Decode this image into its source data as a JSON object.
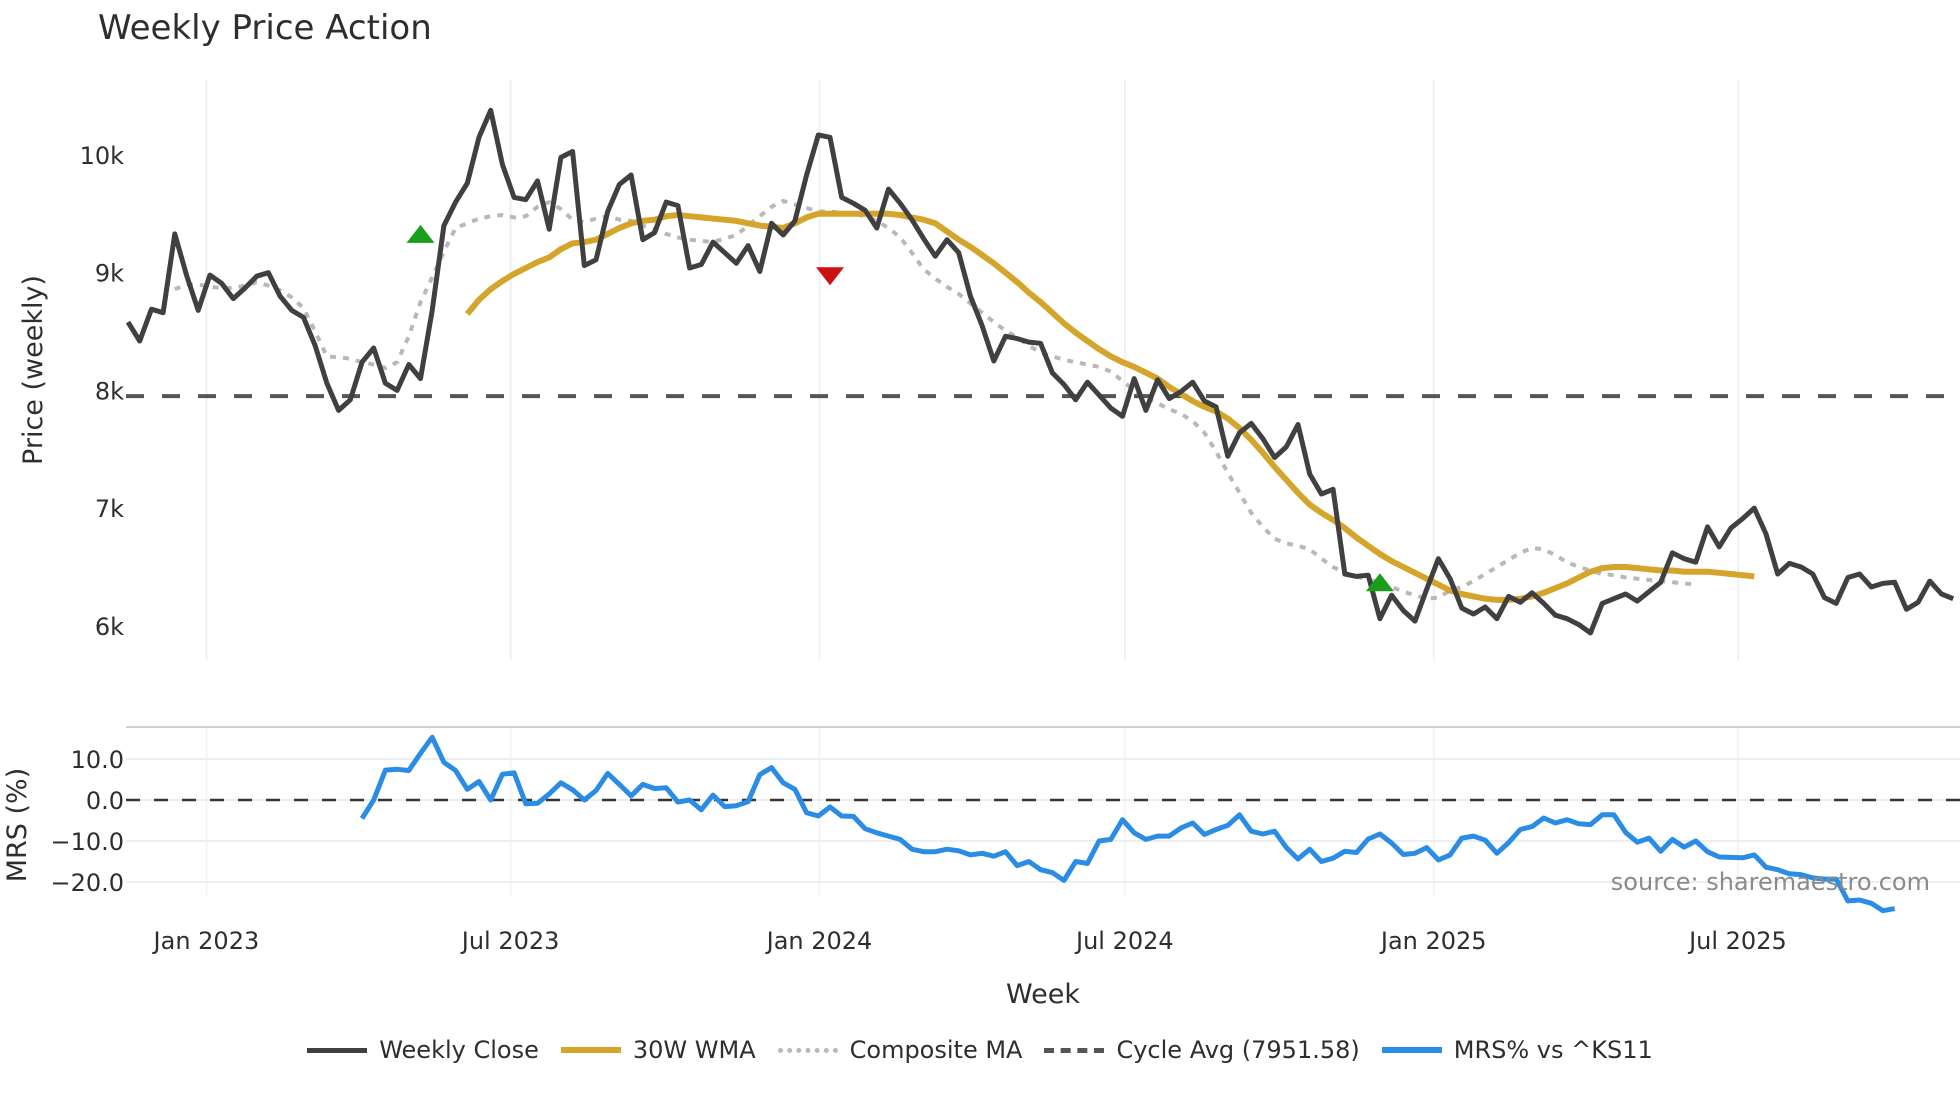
{
  "title": "Weekly Price Action",
  "source_label": "source: sharemaestro.com",
  "axes": {
    "price_ylabel": "Price (weekly)",
    "mrs_ylabel": "MRS (%)",
    "xlabel": "Week",
    "price_ticks": [
      {
        "label": "10k",
        "value": 10000
      },
      {
        "label": "9k",
        "value": 9000
      },
      {
        "label": "8k",
        "value": 8000
      },
      {
        "label": "7k",
        "value": 7000
      },
      {
        "label": "6k",
        "value": 6000
      }
    ],
    "mrs_ticks": [
      {
        "label": "10.0",
        "value": 10
      },
      {
        "label": "0.0",
        "value": 0
      },
      {
        "label": "−10.0",
        "value": -10
      },
      {
        "label": "−20.0",
        "value": -20
      }
    ],
    "x_ticks": [
      {
        "label": "Jan 2023",
        "week": 6.7
      },
      {
        "label": "Jul 2023",
        "week": 32.7
      },
      {
        "label": "Jan 2024",
        "week": 59.1
      },
      {
        "label": "Jul 2024",
        "week": 85.2
      },
      {
        "label": "Jan 2025",
        "week": 111.6
      },
      {
        "label": "Jul 2025",
        "week": 137.6
      }
    ]
  },
  "legend": [
    {
      "label": "Weekly Close",
      "color": "#404040",
      "style": "solid"
    },
    {
      "label": "30W WMA",
      "color": "#d4a52a",
      "style": "solid"
    },
    {
      "label": "Composite MA",
      "color": "#b8b8b8",
      "style": "dotted"
    },
    {
      "label": "Cycle Avg (7951.58)",
      "color": "#555555",
      "style": "dashed"
    },
    {
      "label": "MRS% vs ^KS11",
      "color": "#2b8ce6",
      "style": "solid"
    }
  ],
  "chart_data": [
    {
      "type": "line",
      "title": "Weekly Price Action",
      "xlabel": "Week",
      "ylabel": "Price (weekly)",
      "ylim": [
        5700,
        10600
      ],
      "x_range": [
        "Nov 2022",
        "Oct 2025"
      ],
      "grid": true,
      "reference_line": {
        "name": "Cycle Avg",
        "value": 7951.58
      },
      "series": [
        {
          "name": "Weekly Close",
          "start_week": 0,
          "values": [
            8580,
            8420,
            8690,
            8660,
            9330,
            8980,
            8680,
            8980,
            8910,
            8780,
            8870,
            8970,
            9000,
            8800,
            8680,
            8620,
            8380,
            8060,
            7830,
            7920,
            8240,
            8360,
            8060,
            8000,
            8220,
            8100,
            8680,
            9400,
            9600,
            9760,
            10150,
            10380,
            9920,
            9640,
            9620,
            9780,
            9370,
            9980,
            10030,
            9060,
            9110,
            9520,
            9750,
            9830,
            9280,
            9340,
            9600,
            9570,
            9040,
            9070,
            9260,
            9170,
            9080,
            9230,
            9010,
            9420,
            9320,
            9440,
            9830,
            10170,
            10150,
            9640,
            9590,
            9530,
            9380,
            9710,
            9590,
            9450,
            9290,
            9140,
            9280,
            9170,
            8800,
            8550,
            8250,
            8460,
            8440,
            8410,
            8400,
            8150,
            8050,
            7920,
            8070,
            7960,
            7850,
            7780,
            8100,
            7830,
            8090,
            7930,
            7990,
            8070,
            7910,
            7860,
            7440,
            7640,
            7720,
            7590,
            7430,
            7520,
            7710,
            7290,
            7120,
            7160,
            6440,
            6420,
            6430,
            6060,
            6260,
            6130,
            6040,
            6310,
            6570,
            6400,
            6150,
            6100,
            6160,
            6060,
            6250,
            6200,
            6280,
            6190,
            6090,
            6060,
            6010,
            5940,
            6190,
            6230,
            6270,
            6210,
            6290,
            6370,
            6620,
            6570,
            6540,
            6840,
            6670,
            6830,
            6910,
            7000,
            6780,
            6440,
            6530,
            6500,
            6440,
            6240,
            6190,
            6410,
            6440,
            6330,
            6360,
            6370,
            6140,
            6200,
            6380,
            6270,
            6230
          ]
        },
        {
          "name": "30W WMA",
          "start_week": 29,
          "values": [
            8650,
            8770,
            8860,
            8930,
            8990,
            9040,
            9090,
            9130,
            9200,
            9250,
            9260,
            9280,
            9330,
            9380,
            9420,
            9440,
            9450,
            9480,
            9490,
            9480,
            9470,
            9460,
            9450,
            9440,
            9420,
            9400,
            9390,
            9380,
            9420,
            9470,
            9500,
            9500,
            9500,
            9500,
            9500,
            9500,
            9500,
            9490,
            9470,
            9450,
            9420,
            9350,
            9280,
            9220,
            9150,
            9080,
            9000,
            8920,
            8830,
            8750,
            8660,
            8570,
            8490,
            8420,
            8350,
            8290,
            8240,
            8200,
            8150,
            8100,
            8030,
            7970,
            7910,
            7860,
            7820,
            7760,
            7680,
            7580,
            7470,
            7350,
            7240,
            7130,
            7030,
            6960,
            6900,
            6830,
            6750,
            6680,
            6610,
            6550,
            6500,
            6450,
            6400,
            6350,
            6300,
            6270,
            6250,
            6230,
            6220,
            6220,
            6230,
            6250,
            6280,
            6320,
            6360,
            6410,
            6460,
            6490,
            6500,
            6500,
            6490,
            6480,
            6470,
            6470,
            6460,
            6460,
            6460,
            6450,
            6440,
            6430,
            6420
          ]
        },
        {
          "name": "Composite MA",
          "start_week": 4,
          "values": [
            8860,
            8900,
            8900,
            8880,
            8870,
            8870,
            8890,
            8920,
            8890,
            8850,
            8790,
            8700,
            8500,
            8290,
            8280,
            8270,
            8240,
            8220,
            8190,
            8240,
            8460,
            8750,
            8960,
            9180,
            9380,
            9420,
            9460,
            9480,
            9490,
            9470,
            9480,
            9560,
            9600,
            9540,
            9450,
            9430,
            9460,
            9480,
            9450,
            9440,
            9400,
            9370,
            9330,
            9300,
            9280,
            9270,
            9260,
            9290,
            9320,
            9400,
            9480,
            9560,
            9610,
            9580,
            9550,
            9520,
            9520,
            9510,
            9500,
            9480,
            9440,
            9380,
            9300,
            9170,
            9030,
            8950,
            8880,
            8820,
            8740,
            8660,
            8580,
            8510,
            8450,
            8380,
            8320,
            8290,
            8260,
            8240,
            8220,
            8200,
            8160,
            8080,
            8000,
            7940,
            7890,
            7840,
            7800,
            7740,
            7640,
            7480,
            7300,
            7130,
            6960,
            6840,
            6740,
            6700,
            6680,
            6650,
            6570,
            6500,
            6450,
            6420,
            6390,
            6370,
            6330,
            6290,
            6260,
            6230,
            6240,
            6300,
            6330,
            6380,
            6440,
            6500,
            6560,
            6620,
            6660,
            6650,
            6600,
            6540,
            6500,
            6470,
            6440,
            6430,
            6410,
            6400,
            6390,
            6380,
            6370,
            6360,
            6350
          ]
        },
        {
          "name": "Buy signal",
          "type": "marker",
          "color": "#1a9e1a",
          "points": [
            {
              "week": 25,
              "value": 9330
            },
            {
              "week": 107,
              "value": 6370
            }
          ]
        },
        {
          "name": "Sell signal",
          "type": "marker",
          "color": "#cc1111",
          "points": [
            {
              "week": 60,
              "value": 8970
            }
          ]
        }
      ]
    },
    {
      "type": "line",
      "title": "MRS% vs ^KS11",
      "xlabel": "Week",
      "ylabel": "MRS (%)",
      "ylim": [
        -27,
        18
      ],
      "grid": true,
      "reference_line": {
        "name": "zero",
        "value": 0
      },
      "series": [
        {
          "name": "MRS% vs ^KS11",
          "start_week": 20,
          "values": [
            -4.5,
            0,
            7.3,
            7.5,
            7.2,
            11.4,
            15.3,
            9.2,
            7.2,
            2.6,
            4.5,
            0,
            6.3,
            6.6,
            -0.9,
            -0.8,
            1.5,
            4.2,
            2.5,
            0,
            2.3,
            6.5,
            3.8,
            1.0,
            3.8,
            2.8,
            3.0,
            -0.5,
            0,
            -2.4,
            1.2,
            -1.6,
            -1.4,
            -0.4,
            6.2,
            7.9,
            4.2,
            2.6,
            -3.1,
            -3.9,
            -1.7,
            -3.9,
            -4.0,
            -7.0,
            -8.0,
            -8.8,
            -9.6,
            -12.0,
            -12.6,
            -12.6,
            -12.0,
            -12.4,
            -13.4,
            -13.0,
            -13.7,
            -12.6,
            -16.0,
            -15.0,
            -17.0,
            -17.7,
            -19.6,
            -15.0,
            -15.5,
            -10.0,
            -9.6,
            -4.8,
            -8.0,
            -9.6,
            -8.8,
            -8.8,
            -6.8,
            -5.6,
            -8.4,
            -7.2,
            -6.2,
            -3.6,
            -7.6,
            -8.3,
            -7.6,
            -11.6,
            -14.4,
            -12.0,
            -15.0,
            -14.2,
            -12.5,
            -12.8,
            -9.5,
            -8.3,
            -10.5,
            -13.3,
            -13.0,
            -11.6,
            -14.6,
            -13.4,
            -9.3,
            -8.8,
            -9.8,
            -13.0,
            -10.4,
            -7.2,
            -6.5,
            -4.4,
            -5.6,
            -4.8,
            -5.8,
            -6.0,
            -3.6,
            -3.6,
            -7.9,
            -10.3,
            -9.3,
            -12.5,
            -9.6,
            -11.5,
            -10.0,
            -12.6,
            -13.9,
            -14.0,
            -14.1,
            -13.4,
            -16.4,
            -17.0,
            -18.0,
            -18.2,
            -19.0,
            -19.3,
            -19.3,
            -24.6,
            -24.4,
            -25.2,
            -27.0,
            -26.5
          ]
        }
      ]
    }
  ]
}
